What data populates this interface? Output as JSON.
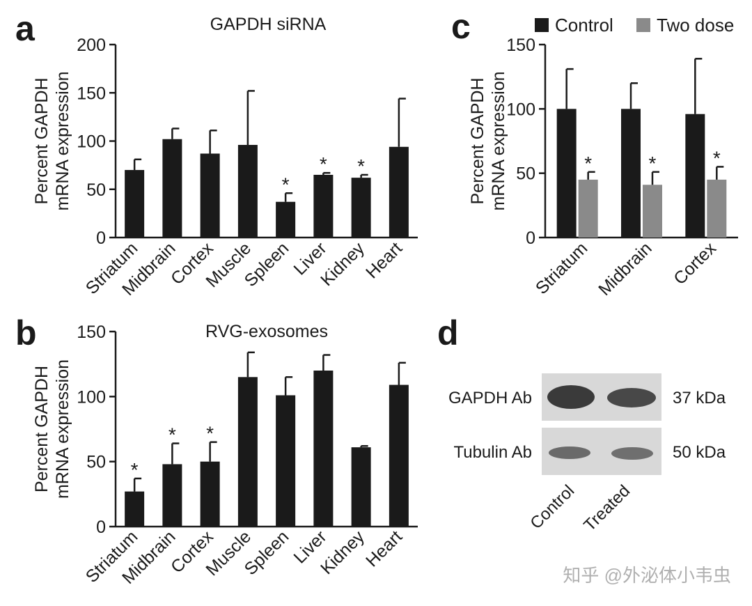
{
  "colors": {
    "black": "#1a1a1a",
    "gray": "#8a8a8a"
  },
  "chart_data": [
    {
      "panel": "a",
      "type": "bar",
      "title": "GAPDH siRNA",
      "ylabel": [
        "Percent GAPDH",
        "mRNA expression"
      ],
      "ylim": [
        0,
        200
      ],
      "yticks": [
        0,
        50,
        100,
        150,
        200
      ],
      "categories": [
        "Striatum",
        "Midbrain",
        "Cortex",
        "Muscle",
        "Spleen",
        "Liver",
        "Kidney",
        "Heart"
      ],
      "series": [
        {
          "name": "GAPDH siRNA",
          "color": "#1a1a1a",
          "values": [
            70,
            102,
            87,
            96,
            37,
            65,
            62,
            94
          ],
          "errors": [
            11,
            11,
            24,
            56,
            9,
            2,
            3,
            50
          ],
          "significant": [
            false,
            false,
            false,
            false,
            true,
            true,
            true,
            false
          ]
        }
      ],
      "significance_label": "*"
    },
    {
      "panel": "b",
      "type": "bar",
      "title": "RVG-exosomes",
      "ylabel": [
        "Percent GAPDH",
        "mRNA expression"
      ],
      "ylim": [
        0,
        150
      ],
      "yticks": [
        0,
        50,
        100,
        150
      ],
      "categories": [
        "Striatum",
        "Midbrain",
        "Cortex",
        "Muscle",
        "Spleen",
        "Liver",
        "Kidney",
        "Heart"
      ],
      "series": [
        {
          "name": "RVG-exosomes",
          "color": "#1a1a1a",
          "values": [
            27,
            48,
            50,
            115,
            101,
            120,
            61,
            109
          ],
          "errors": [
            10,
            16,
            15,
            19,
            14,
            12,
            1,
            17
          ],
          "significant": [
            true,
            true,
            true,
            false,
            false,
            false,
            false,
            false
          ]
        }
      ],
      "significance_label": "*"
    },
    {
      "panel": "c",
      "type": "bar",
      "title": "",
      "ylabel": [
        "Percent GAPDH",
        "mRNA expression"
      ],
      "ylim": [
        0,
        150
      ],
      "yticks": [
        0,
        50,
        100,
        150
      ],
      "categories": [
        "Striatum",
        "Midbrain",
        "Cortex"
      ],
      "legend_position": "top",
      "series": [
        {
          "name": "Control",
          "color": "#1a1a1a",
          "values": [
            100,
            100,
            96
          ],
          "errors": [
            31,
            20,
            43
          ],
          "significant": [
            false,
            false,
            false
          ]
        },
        {
          "name": "Two dose",
          "color": "#8a8a8a",
          "values": [
            45,
            41,
            45
          ],
          "errors": [
            6,
            10,
            10
          ],
          "significant": [
            true,
            true,
            true
          ]
        }
      ],
      "significance_label": "*"
    }
  ],
  "blot": {
    "panel": "d",
    "rows": [
      {
        "label": "GAPDH Ab",
        "size": "37 kDa"
      },
      {
        "label": "Tubulin Ab",
        "size": "50 kDa"
      }
    ],
    "lanes": [
      "Control",
      "Treated"
    ]
  },
  "watermark": "知乎 @外泌体小韦虫"
}
